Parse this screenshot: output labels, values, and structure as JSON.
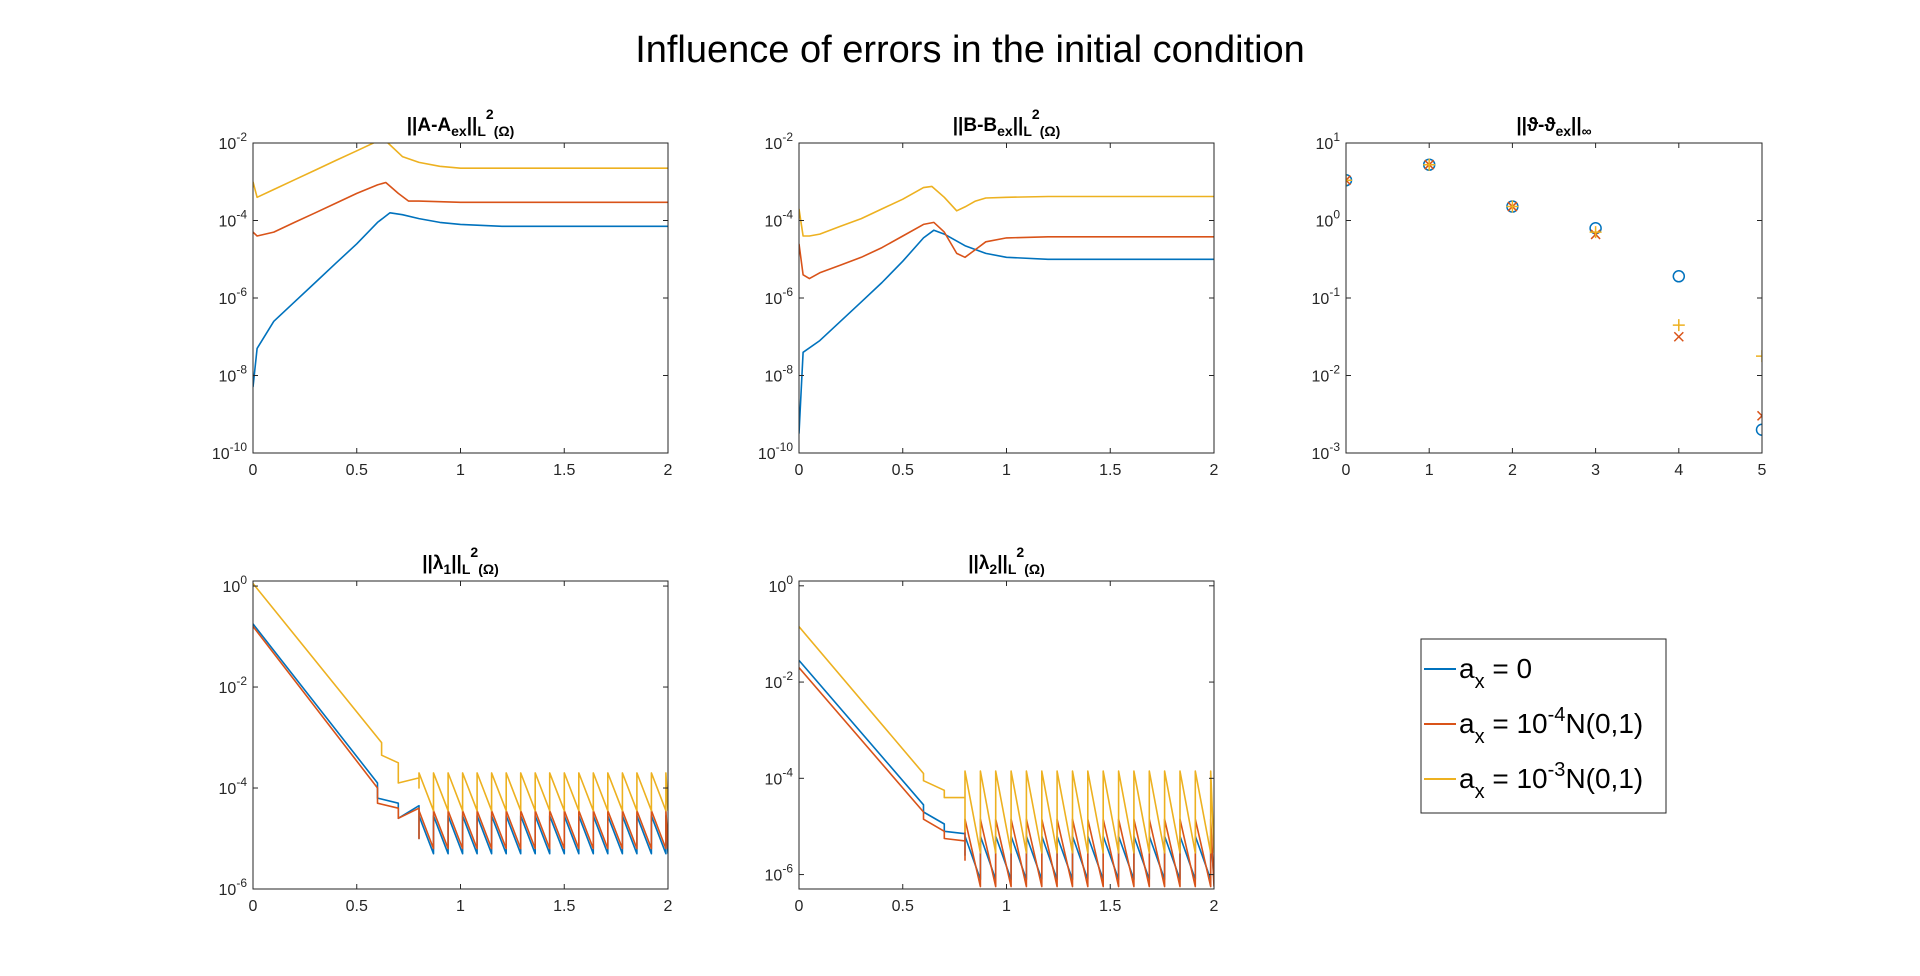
{
  "figure_title": "Influence of errors in the initial condition",
  "colors": {
    "blue": "#0072BD",
    "orange": "#D95319",
    "yellow": "#EDB120",
    "axis": "#262626"
  },
  "legend": {
    "entries": [
      {
        "color": "#0072BD",
        "base": "a",
        "sub": "x",
        "text": " = 0"
      },
      {
        "color": "#D95319",
        "base": "a",
        "sub": "x",
        "pre": " = 10",
        "sup": "-4",
        "post": "N(0,1)"
      },
      {
        "color": "#EDB120",
        "base": "a",
        "sub": "x",
        "pre": " = 10",
        "sup": "-3",
        "post": "N(0,1)"
      }
    ]
  },
  "chart_data": [
    {
      "type": "line",
      "title_parts": [
        {
          "t": "||A-A"
        },
        {
          "t": "ex",
          "sub": 1
        },
        {
          "t": "||"
        },
        {
          "t": "L",
          "sub": 1
        },
        {
          "t": "2",
          "sup": 1
        },
        {
          "t": "(Ω)",
          "sub": 1
        }
      ],
      "xlim": [
        0,
        2
      ],
      "ylim_exp": [
        -10,
        -2
      ],
      "yscale": "log",
      "xticks": [
        "0",
        "0.5",
        "1",
        "1.5",
        "2"
      ],
      "yticks": [
        {
          "base": "10",
          "exp": "-10"
        },
        {
          "base": "10",
          "exp": "-8"
        },
        {
          "base": "10",
          "exp": "-6"
        },
        {
          "base": "10",
          "exp": "-4"
        },
        {
          "base": "10",
          "exp": "-2"
        }
      ],
      "series": [
        {
          "color": "#0072BD",
          "x": [
            0,
            0.02,
            0.1,
            0.2,
            0.3,
            0.4,
            0.5,
            0.6,
            0.66,
            0.72,
            0.8,
            0.9,
            1.0,
            1.2,
            1.5,
            2.0
          ],
          "log10y": [
            -8.3,
            -7.3,
            -6.6,
            -6.1,
            -5.6,
            -5.1,
            -4.6,
            -4.05,
            -3.8,
            -3.85,
            -3.95,
            -4.05,
            -4.1,
            -4.15,
            -4.15,
            -4.15
          ]
        },
        {
          "color": "#D95319",
          "x": [
            0,
            0.02,
            0.1,
            0.2,
            0.3,
            0.4,
            0.5,
            0.6,
            0.64,
            0.7,
            0.75,
            0.8,
            1.0,
            1.5,
            2.0
          ],
          "log10y": [
            -4.3,
            -4.4,
            -4.3,
            -4.05,
            -3.8,
            -3.55,
            -3.3,
            -3.08,
            -3.02,
            -3.3,
            -3.5,
            -3.5,
            -3.53,
            -3.53,
            -3.53
          ]
        },
        {
          "color": "#EDB120",
          "x": [
            0,
            0.02,
            0.1,
            0.2,
            0.3,
            0.4,
            0.5,
            0.6,
            0.63,
            0.66,
            0.72,
            0.8,
            0.9,
            1.0,
            1.5,
            2.0
          ],
          "log10y": [
            -3.0,
            -3.4,
            -3.2,
            -2.95,
            -2.7,
            -2.45,
            -2.2,
            -1.95,
            -1.9,
            -2.05,
            -2.35,
            -2.5,
            -2.6,
            -2.65,
            -2.65,
            -2.65
          ]
        }
      ]
    },
    {
      "type": "line",
      "title_parts": [
        {
          "t": "||B-B"
        },
        {
          "t": "ex",
          "sub": 1
        },
        {
          "t": "||"
        },
        {
          "t": "L",
          "sub": 1
        },
        {
          "t": "2",
          "sup": 1
        },
        {
          "t": "(Ω)",
          "sub": 1
        }
      ],
      "xlim": [
        0,
        2
      ],
      "ylim_exp": [
        -10,
        -2
      ],
      "yscale": "log",
      "xticks": [
        "0",
        "0.5",
        "1",
        "1.5",
        "2"
      ],
      "yticks": [
        {
          "base": "10",
          "exp": "-10"
        },
        {
          "base": "10",
          "exp": "-8"
        },
        {
          "base": "10",
          "exp": "-6"
        },
        {
          "base": "10",
          "exp": "-4"
        },
        {
          "base": "10",
          "exp": "-2"
        }
      ],
      "series": [
        {
          "color": "#0072BD",
          "x": [
            0,
            0.02,
            0.1,
            0.2,
            0.3,
            0.4,
            0.5,
            0.6,
            0.65,
            0.7,
            0.8,
            0.9,
            1.0,
            1.2,
            1.5,
            2.0
          ],
          "log10y": [
            -9.5,
            -7.4,
            -7.1,
            -6.6,
            -6.1,
            -5.6,
            -5.05,
            -4.45,
            -4.25,
            -4.35,
            -4.65,
            -4.85,
            -4.95,
            -5.0,
            -5.0,
            -5.0
          ]
        },
        {
          "color": "#D95319",
          "x": [
            0,
            0.02,
            0.05,
            0.1,
            0.2,
            0.3,
            0.4,
            0.5,
            0.6,
            0.65,
            0.7,
            0.76,
            0.8,
            0.85,
            0.9,
            1.0,
            1.2,
            1.5,
            2.0
          ],
          "log10y": [
            -4.6,
            -5.4,
            -5.5,
            -5.35,
            -5.15,
            -4.95,
            -4.7,
            -4.4,
            -4.1,
            -4.05,
            -4.3,
            -4.85,
            -4.95,
            -4.75,
            -4.55,
            -4.45,
            -4.42,
            -4.42,
            -4.42
          ]
        },
        {
          "color": "#EDB120",
          "x": [
            0,
            0.02,
            0.05,
            0.1,
            0.2,
            0.3,
            0.4,
            0.5,
            0.6,
            0.64,
            0.7,
            0.76,
            0.8,
            0.85,
            0.9,
            1.0,
            1.2,
            1.5,
            2.0
          ],
          "log10y": [
            -3.7,
            -4.4,
            -4.4,
            -4.35,
            -4.15,
            -3.95,
            -3.7,
            -3.45,
            -3.15,
            -3.12,
            -3.4,
            -3.75,
            -3.65,
            -3.5,
            -3.42,
            -3.4,
            -3.38,
            -3.38,
            -3.38
          ]
        }
      ]
    },
    {
      "type": "scatter",
      "title_parts": [
        {
          "t": "||ϑ-ϑ"
        },
        {
          "t": "ex",
          "sub": 1
        },
        {
          "t": "||"
        },
        {
          "t": "∞",
          "sub": 1
        }
      ],
      "xlim": [
        0,
        5
      ],
      "ylim_exp": [
        -3,
        1
      ],
      "yscale": "log",
      "xticks": [
        "0",
        "1",
        "2",
        "3",
        "4",
        "5"
      ],
      "yticks": [
        {
          "base": "10",
          "exp": "-3"
        },
        {
          "base": "10",
          "exp": "-2"
        },
        {
          "base": "10",
          "exp": "-1"
        },
        {
          "base": "10",
          "exp": "0"
        },
        {
          "base": "10",
          "exp": "1"
        }
      ],
      "series": [
        {
          "color": "#0072BD",
          "marker": "circle",
          "x": [
            0,
            1,
            2,
            3,
            4,
            5
          ],
          "log10y": [
            0.52,
            0.72,
            0.18,
            -0.1,
            -0.72,
            -2.7
          ]
        },
        {
          "color": "#D95319",
          "marker": "cross",
          "x": [
            0,
            1,
            2,
            3,
            4,
            5
          ],
          "log10y": [
            0.52,
            0.72,
            0.18,
            -0.18,
            -1.5,
            -2.52
          ]
        },
        {
          "color": "#EDB120",
          "marker": "plus",
          "x": [
            0,
            1,
            2,
            3,
            4,
            5
          ],
          "log10y": [
            0.52,
            0.72,
            0.18,
            -0.15,
            -1.35,
            -1.75
          ]
        }
      ]
    },
    {
      "type": "line",
      "title_parts": [
        {
          "t": "||λ"
        },
        {
          "t": "1",
          "sub": 1
        },
        {
          "t": "||"
        },
        {
          "t": "L",
          "sub": 1
        },
        {
          "t": "2",
          "sup": 1
        },
        {
          "t": "(Ω)",
          "sub": 1
        }
      ],
      "xlim": [
        0,
        2
      ],
      "ylim_exp": [
        -6,
        0.1
      ],
      "yscale": "log",
      "xticks": [
        "0",
        "0.5",
        "1",
        "1.5",
        "2"
      ],
      "yticks": [
        {
          "base": "10",
          "exp": "-6"
        },
        {
          "base": "10",
          "exp": "-4"
        },
        {
          "base": "10",
          "exp": "-2"
        },
        {
          "base": "10",
          "exp": "0"
        }
      ],
      "series": [
        {
          "color": "#0072BD",
          "x": [
            0,
            0.6,
            0.6,
            0.7,
            0.7,
            0.8,
            0.8
          ],
          "log10y": [
            -0.75,
            -3.9,
            -4.2,
            -4.3,
            -4.6,
            -4.35,
            -5.0
          ],
          "saw": {
            "x0": 0.8,
            "x1": 2.0,
            "period": 0.07,
            "bottom": -5.3,
            "top": -4.55
          }
        },
        {
          "color": "#D95319",
          "x": [
            0,
            0.6,
            0.6,
            0.7,
            0.7,
            0.8,
            0.8
          ],
          "log10y": [
            -0.8,
            -4.0,
            -4.3,
            -4.4,
            -4.6,
            -4.4,
            -5.0
          ],
          "saw": {
            "x0": 0.8,
            "x1": 2.0,
            "period": 0.07,
            "bottom": -5.2,
            "top": -4.45
          }
        },
        {
          "color": "#EDB120",
          "x": [
            0,
            0.62,
            0.62,
            0.7,
            0.7,
            0.8,
            0.8
          ],
          "log10y": [
            0.05,
            -3.1,
            -3.35,
            -3.5,
            -3.9,
            -3.8,
            -4.0
          ],
          "saw": {
            "x0": 0.8,
            "x1": 2.0,
            "period": 0.07,
            "bottom": -4.45,
            "top": -3.7
          }
        }
      ]
    },
    {
      "type": "line",
      "title_parts": [
        {
          "t": "||λ"
        },
        {
          "t": "2",
          "sub": 1
        },
        {
          "t": "||"
        },
        {
          "t": "L",
          "sub": 1
        },
        {
          "t": "2",
          "sup": 1
        },
        {
          "t": "(Ω)",
          "sub": 1
        }
      ],
      "xlim": [
        0,
        2
      ],
      "ylim_exp": [
        -6.3,
        0.1
      ],
      "yscale": "log",
      "xticks": [
        "0",
        "0.5",
        "1",
        "1.5",
        "2"
      ],
      "yticks": [
        {
          "base": "10",
          "exp": "-6"
        },
        {
          "base": "10",
          "exp": "-4"
        },
        {
          "base": "10",
          "exp": "-2"
        },
        {
          "base": "10",
          "exp": "0"
        }
      ],
      "series": [
        {
          "color": "#0072BD",
          "x": [
            0,
            0.6,
            0.6,
            0.7,
            0.7,
            0.8,
            0.8
          ],
          "log10y": [
            -1.55,
            -4.55,
            -4.7,
            -4.95,
            -5.1,
            -5.15,
            -5.6
          ],
          "saw": {
            "x0": 0.8,
            "x1": 2.0,
            "period": 0.074,
            "bottom": -6.1,
            "top": -5.2
          }
        },
        {
          "color": "#D95319",
          "x": [
            0,
            0.6,
            0.6,
            0.7,
            0.7,
            0.8,
            0.8
          ],
          "log10y": [
            -1.7,
            -4.7,
            -4.85,
            -5.1,
            -5.25,
            -5.3,
            -5.7
          ],
          "saw": {
            "x0": 0.8,
            "x1": 2.0,
            "period": 0.074,
            "bottom": -6.25,
            "top": -4.85
          }
        },
        {
          "color": "#EDB120",
          "x": [
            0,
            0.6,
            0.6,
            0.7,
            0.7,
            0.8,
            0.8
          ],
          "log10y": [
            -0.85,
            -3.9,
            -4.05,
            -4.25,
            -4.4,
            -4.4,
            -5.1
          ],
          "saw": {
            "x0": 0.8,
            "x1": 2.0,
            "period": 0.074,
            "bottom": -5.55,
            "top": -3.85
          }
        }
      ]
    }
  ]
}
